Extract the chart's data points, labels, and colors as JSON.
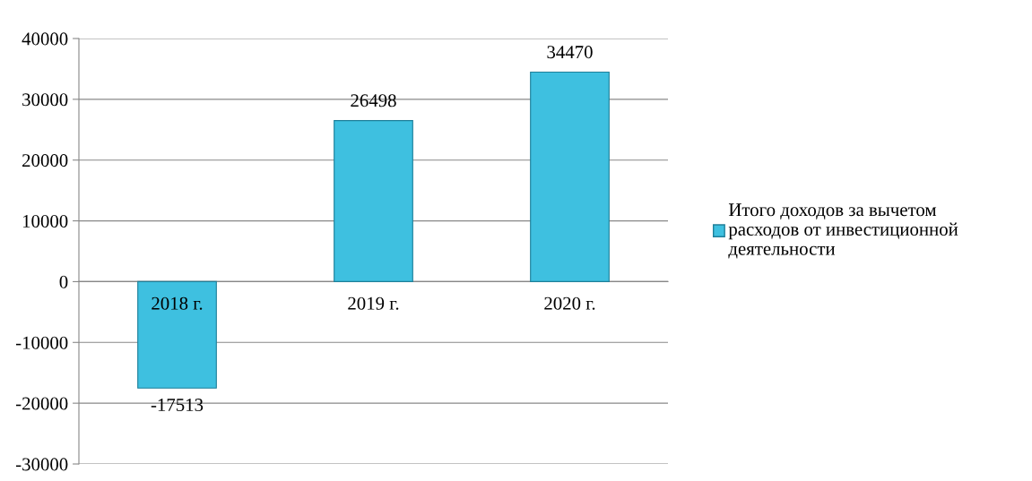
{
  "chart_data": {
    "type": "bar",
    "categories": [
      "2018 г.",
      "2019 г.",
      "2020 г."
    ],
    "series": [
      {
        "name": "Итого доходов за вычетом\nрасходов от инвестиционной\nдеятельности",
        "color": "#3ec0e0",
        "values": [
          -17513,
          26498,
          34470
        ]
      }
    ],
    "ylim": [
      -30000,
      40000
    ],
    "yticks": [
      -30000,
      -20000,
      -10000,
      0,
      10000,
      20000,
      30000,
      40000
    ],
    "grid": "y",
    "legend": "right",
    "data_labels": true
  }
}
